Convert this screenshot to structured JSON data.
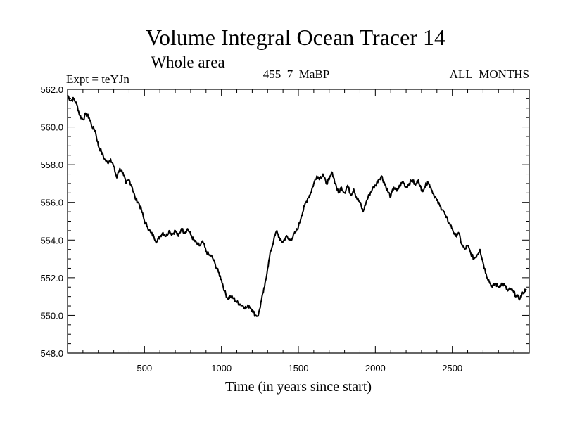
{
  "chart_data": {
    "type": "line",
    "title": "Volume Integral Ocean Tracer 14",
    "subtitle": "Whole area",
    "header_left": "Expt = teYJn",
    "header_center": "455_7_MaBP",
    "header_right": "ALL_MONTHS",
    "xlabel": "Time (in years since start)",
    "ylabel": "",
    "xlim": [
      0,
      3000
    ],
    "ylim": [
      548.0,
      562.0
    ],
    "x_ticks": [
      500,
      1000,
      1500,
      2000,
      2500
    ],
    "y_ticks": [
      "548.0",
      "550.0",
      "552.0",
      "554.0",
      "556.0",
      "558.0",
      "560.0",
      "562.0"
    ],
    "grid": false,
    "series": [
      {
        "color": "#000000",
        "points": [
          [
            0,
            561.7
          ],
          [
            20,
            561.4
          ],
          [
            40,
            561.5
          ],
          [
            60,
            561.2
          ],
          [
            80,
            560.6
          ],
          [
            100,
            560.4
          ],
          [
            120,
            560.7
          ],
          [
            140,
            560.5
          ],
          [
            160,
            560.0
          ],
          [
            180,
            559.8
          ],
          [
            200,
            559.0
          ],
          [
            220,
            558.7
          ],
          [
            240,
            558.3
          ],
          [
            260,
            558.1
          ],
          [
            280,
            558.3
          ],
          [
            300,
            557.9
          ],
          [
            320,
            557.3
          ],
          [
            340,
            557.8
          ],
          [
            360,
            557.6
          ],
          [
            380,
            557.0
          ],
          [
            400,
            557.2
          ],
          [
            420,
            556.8
          ],
          [
            440,
            556.2
          ],
          [
            460,
            556.0
          ],
          [
            480,
            555.6
          ],
          [
            500,
            555.0
          ],
          [
            520,
            554.7
          ],
          [
            540,
            554.4
          ],
          [
            560,
            554.2
          ],
          [
            580,
            553.9
          ],
          [
            600,
            554.2
          ],
          [
            620,
            554.4
          ],
          [
            640,
            554.2
          ],
          [
            660,
            554.5
          ],
          [
            680,
            554.3
          ],
          [
            700,
            554.5
          ],
          [
            720,
            554.2
          ],
          [
            740,
            554.6
          ],
          [
            760,
            554.4
          ],
          [
            780,
            554.6
          ],
          [
            800,
            554.3
          ],
          [
            820,
            554.0
          ],
          [
            840,
            553.8
          ],
          [
            860,
            553.7
          ],
          [
            880,
            553.9
          ],
          [
            900,
            553.4
          ],
          [
            920,
            553.2
          ],
          [
            940,
            553.1
          ],
          [
            960,
            552.7
          ],
          [
            980,
            552.3
          ],
          [
            1000,
            551.9
          ],
          [
            1020,
            551.3
          ],
          [
            1040,
            550.9
          ],
          [
            1060,
            551.0
          ],
          [
            1080,
            550.9
          ],
          [
            1100,
            550.7
          ],
          [
            1120,
            550.6
          ],
          [
            1140,
            550.5
          ],
          [
            1160,
            550.4
          ],
          [
            1180,
            550.5
          ],
          [
            1200,
            550.3
          ],
          [
            1220,
            550.0
          ],
          [
            1240,
            550.0
          ],
          [
            1260,
            550.8
          ],
          [
            1280,
            551.5
          ],
          [
            1300,
            552.5
          ],
          [
            1320,
            553.4
          ],
          [
            1340,
            554.0
          ],
          [
            1360,
            554.5
          ],
          [
            1380,
            554.0
          ],
          [
            1400,
            553.9
          ],
          [
            1420,
            554.2
          ],
          [
            1440,
            554.0
          ],
          [
            1460,
            554.1
          ],
          [
            1480,
            554.4
          ],
          [
            1500,
            554.7
          ],
          [
            1520,
            555.3
          ],
          [
            1540,
            555.8
          ],
          [
            1560,
            556.2
          ],
          [
            1580,
            556.5
          ],
          [
            1600,
            557.0
          ],
          [
            1620,
            557.4
          ],
          [
            1640,
            557.3
          ],
          [
            1660,
            557.5
          ],
          [
            1680,
            557.0
          ],
          [
            1700,
            557.2
          ],
          [
            1720,
            557.6
          ],
          [
            1740,
            557.0
          ],
          [
            1760,
            556.5
          ],
          [
            1780,
            556.8
          ],
          [
            1800,
            556.5
          ],
          [
            1820,
            556.9
          ],
          [
            1840,
            556.4
          ],
          [
            1860,
            556.7
          ],
          [
            1880,
            556.2
          ],
          [
            1900,
            556.0
          ],
          [
            1920,
            555.5
          ],
          [
            1940,
            556.0
          ],
          [
            1960,
            556.4
          ],
          [
            1980,
            556.7
          ],
          [
            2000,
            556.9
          ],
          [
            2020,
            557.2
          ],
          [
            2040,
            557.4
          ],
          [
            2060,
            557.0
          ],
          [
            2080,
            556.6
          ],
          [
            2100,
            556.3
          ],
          [
            2120,
            556.8
          ],
          [
            2140,
            556.6
          ],
          [
            2160,
            556.9
          ],
          [
            2180,
            557.1
          ],
          [
            2200,
            556.8
          ],
          [
            2220,
            557.0
          ],
          [
            2240,
            557.2
          ],
          [
            2260,
            556.9
          ],
          [
            2280,
            557.2
          ],
          [
            2300,
            556.6
          ],
          [
            2320,
            556.8
          ],
          [
            2340,
            557.1
          ],
          [
            2360,
            556.8
          ],
          [
            2380,
            556.4
          ],
          [
            2400,
            556.1
          ],
          [
            2420,
            555.8
          ],
          [
            2440,
            555.6
          ],
          [
            2460,
            555.2
          ],
          [
            2480,
            554.9
          ],
          [
            2500,
            554.6
          ],
          [
            2520,
            554.2
          ],
          [
            2540,
            554.4
          ],
          [
            2560,
            553.8
          ],
          [
            2580,
            553.5
          ],
          [
            2600,
            553.7
          ],
          [
            2620,
            553.3
          ],
          [
            2640,
            553.0
          ],
          [
            2660,
            553.2
          ],
          [
            2680,
            553.5
          ],
          [
            2700,
            552.8
          ],
          [
            2720,
            552.2
          ],
          [
            2740,
            551.8
          ],
          [
            2760,
            551.5
          ],
          [
            2780,
            551.7
          ],
          [
            2800,
            551.5
          ],
          [
            2820,
            551.7
          ],
          [
            2840,
            551.6
          ],
          [
            2860,
            551.3
          ],
          [
            2880,
            551.4
          ],
          [
            2900,
            551.2
          ],
          [
            2920,
            551.0
          ],
          [
            2940,
            550.9
          ],
          [
            2960,
            551.2
          ],
          [
            2980,
            551.4
          ]
        ]
      }
    ]
  }
}
